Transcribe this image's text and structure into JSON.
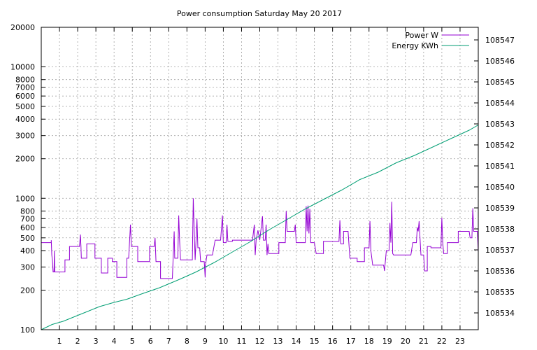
{
  "chart_data": {
    "type": "line",
    "title": "Power consumption Saturday May 20 2017",
    "x_axis": {
      "range": [
        0,
        24
      ],
      "ticks": [
        1,
        2,
        3,
        4,
        5,
        6,
        7,
        8,
        9,
        10,
        11,
        12,
        13,
        14,
        15,
        16,
        17,
        18,
        19,
        20,
        21,
        22,
        23
      ],
      "grid": true
    },
    "y_axis_left": {
      "scale": "log",
      "range": [
        100,
        20000
      ],
      "ticks": [
        100,
        200,
        300,
        400,
        500,
        600,
        700,
        800,
        1000,
        2000,
        3000,
        4000,
        5000,
        6000,
        7000,
        8000,
        10000,
        20000
      ],
      "grid": true
    },
    "y_axis_right": {
      "range": [
        108533.2,
        108547.6
      ],
      "ticks": [
        108534,
        108535,
        108536,
        108537,
        108538,
        108539,
        108540,
        108541,
        108542,
        108543,
        108544,
        108545,
        108546,
        108547
      ]
    },
    "legend": {
      "position": "top-right"
    },
    "series": [
      {
        "name": "Power W",
        "axis": "left",
        "color": "#9400d3",
        "points": [
          [
            0,
            460
          ],
          [
            0.55,
            460
          ],
          [
            0.55,
            480
          ],
          [
            0.58,
            370
          ],
          [
            0.62,
            330
          ],
          [
            0.65,
            275
          ],
          [
            0.7,
            275
          ],
          [
            0.72,
            400
          ],
          [
            0.74,
            275
          ],
          [
            1.3,
            275
          ],
          [
            1.3,
            340
          ],
          [
            1.55,
            340
          ],
          [
            1.55,
            430
          ],
          [
            2.1,
            430
          ],
          [
            2.15,
            530
          ],
          [
            2.18,
            430
          ],
          [
            2.2,
            350
          ],
          [
            2.5,
            350
          ],
          [
            2.5,
            450
          ],
          [
            2.95,
            450
          ],
          [
            2.95,
            350
          ],
          [
            3.3,
            350
          ],
          [
            3.3,
            270
          ],
          [
            3.65,
            270
          ],
          [
            3.65,
            350
          ],
          [
            3.9,
            350
          ],
          [
            3.9,
            330
          ],
          [
            4.15,
            330
          ],
          [
            4.15,
            250
          ],
          [
            4.7,
            250
          ],
          [
            4.7,
            350
          ],
          [
            4.8,
            350
          ],
          [
            4.9,
            630
          ],
          [
            4.95,
            430
          ],
          [
            5.3,
            430
          ],
          [
            5.3,
            330
          ],
          [
            5.95,
            330
          ],
          [
            5.95,
            430
          ],
          [
            6.2,
            430
          ],
          [
            6.25,
            500
          ],
          [
            6.3,
            330
          ],
          [
            6.55,
            330
          ],
          [
            6.55,
            245
          ],
          [
            7.2,
            245
          ],
          [
            7.3,
            560
          ],
          [
            7.33,
            350
          ],
          [
            7.5,
            350
          ],
          [
            7.55,
            740
          ],
          [
            7.6,
            470
          ],
          [
            7.65,
            340
          ],
          [
            8.3,
            340
          ],
          [
            8.35,
            1000
          ],
          [
            8.4,
            560
          ],
          [
            8.45,
            340
          ],
          [
            8.55,
            700
          ],
          [
            8.6,
            420
          ],
          [
            8.7,
            420
          ],
          [
            8.75,
            330
          ],
          [
            8.95,
            330
          ],
          [
            9.0,
            250
          ],
          [
            9.02,
            310
          ],
          [
            9.1,
            370
          ],
          [
            9.4,
            370
          ],
          [
            9.55,
            480
          ],
          [
            9.85,
            480
          ],
          [
            9.95,
            740
          ],
          [
            10.0,
            460
          ],
          [
            10.15,
            460
          ],
          [
            10.2,
            630
          ],
          [
            10.25,
            470
          ],
          [
            10.5,
            470
          ],
          [
            10.5,
            480
          ],
          [
            11.5,
            480
          ],
          [
            11.6,
            480
          ],
          [
            11.7,
            630
          ],
          [
            11.75,
            370
          ],
          [
            11.8,
            480
          ],
          [
            11.9,
            570
          ],
          [
            12.0,
            480
          ],
          [
            12.15,
            730
          ],
          [
            12.2,
            480
          ],
          [
            12.3,
            480
          ],
          [
            12.35,
            630
          ],
          [
            12.4,
            370
          ],
          [
            12.45,
            450
          ],
          [
            12.5,
            380
          ],
          [
            12.8,
            380
          ],
          [
            13.05,
            380
          ],
          [
            13.05,
            460
          ],
          [
            13.4,
            460
          ],
          [
            13.45,
            800
          ],
          [
            13.5,
            560
          ],
          [
            13.9,
            560
          ],
          [
            13.95,
            630
          ],
          [
            14.0,
            460
          ],
          [
            14.5,
            460
          ],
          [
            14.55,
            870
          ],
          [
            14.6,
            560
          ],
          [
            14.65,
            880
          ],
          [
            14.7,
            540
          ],
          [
            14.75,
            830
          ],
          [
            14.8,
            460
          ],
          [
            15.0,
            460
          ],
          [
            15.1,
            380
          ],
          [
            15.5,
            380
          ],
          [
            15.5,
            470
          ],
          [
            16.35,
            470
          ],
          [
            16.4,
            680
          ],
          [
            16.45,
            450
          ],
          [
            16.6,
            450
          ],
          [
            16.6,
            560
          ],
          [
            16.85,
            560
          ],
          [
            16.95,
            350
          ],
          [
            17.35,
            350
          ],
          [
            17.35,
            330
          ],
          [
            17.75,
            330
          ],
          [
            17.75,
            420
          ],
          [
            18.0,
            420
          ],
          [
            18.05,
            670
          ],
          [
            18.1,
            400
          ],
          [
            18.2,
            310
          ],
          [
            18.8,
            310
          ],
          [
            18.85,
            280
          ],
          [
            18.95,
            400
          ],
          [
            19.1,
            400
          ],
          [
            19.15,
            650
          ],
          [
            19.2,
            460
          ],
          [
            19.25,
            940
          ],
          [
            19.3,
            380
          ],
          [
            19.35,
            370
          ],
          [
            20.3,
            370
          ],
          [
            20.4,
            460
          ],
          [
            20.6,
            460
          ],
          [
            20.65,
            600
          ],
          [
            20.7,
            560
          ],
          [
            20.75,
            670
          ],
          [
            20.85,
            370
          ],
          [
            21.0,
            370
          ],
          [
            21.05,
            280
          ],
          [
            21.2,
            280
          ],
          [
            21.2,
            430
          ],
          [
            21.4,
            430
          ],
          [
            21.4,
            420
          ],
          [
            21.6,
            420
          ],
          [
            21.95,
            420
          ],
          [
            22.0,
            710
          ],
          [
            22.05,
            460
          ],
          [
            22.1,
            380
          ],
          [
            22.3,
            380
          ],
          [
            22.3,
            460
          ],
          [
            22.9,
            460
          ],
          [
            22.9,
            560
          ],
          [
            23.5,
            560
          ],
          [
            23.55,
            500
          ],
          [
            23.65,
            500
          ],
          [
            23.7,
            840
          ],
          [
            23.75,
            560
          ],
          [
            23.95,
            560
          ],
          [
            24.0,
            390
          ]
        ]
      },
      {
        "name": "Energy KWh",
        "axis": "right",
        "color": "#009e73",
        "points": [
          [
            0,
            108533.2
          ],
          [
            0.6,
            108533.45
          ],
          [
            1.2,
            108533.6
          ],
          [
            2.2,
            108533.95
          ],
          [
            3.2,
            108534.3
          ],
          [
            4.0,
            108534.5
          ],
          [
            4.7,
            108534.65
          ],
          [
            5.5,
            108534.9
          ],
          [
            6.5,
            108535.2
          ],
          [
            7.6,
            108535.6
          ],
          [
            8.5,
            108535.95
          ],
          [
            9.5,
            108536.4
          ],
          [
            10.5,
            108536.9
          ],
          [
            11.5,
            108537.4
          ],
          [
            12.5,
            108537.95
          ],
          [
            13.5,
            108538.45
          ],
          [
            14.5,
            108538.95
          ],
          [
            15.5,
            108539.4
          ],
          [
            16.5,
            108539.85
          ],
          [
            17.5,
            108540.35
          ],
          [
            18.5,
            108540.7
          ],
          [
            19.5,
            108541.15
          ],
          [
            20.5,
            108541.5
          ],
          [
            21.5,
            108541.9
          ],
          [
            22.5,
            108542.3
          ],
          [
            23.5,
            108542.7
          ],
          [
            24.0,
            108542.95
          ]
        ]
      }
    ]
  }
}
